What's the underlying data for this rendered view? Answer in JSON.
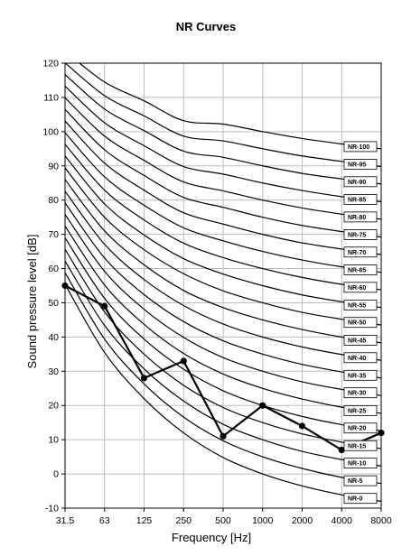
{
  "chart_data": {
    "type": "line",
    "title": "NR Curves",
    "xlabel": "Frequency [Hz]",
    "ylabel": "Sound pressure level [dB]",
    "x_scale": "log",
    "categories": [
      "31.5",
      "63",
      "125",
      "250",
      "500",
      "1000",
      "2000",
      "4000",
      "8000"
    ],
    "ylim": [
      -10,
      120
    ],
    "yticks": [
      "-10",
      "0",
      "10",
      "20",
      "30",
      "40",
      "50",
      "60",
      "70",
      "80",
      "90",
      "100",
      "110",
      "120"
    ],
    "grid": true,
    "series": [
      {
        "name": "NR-0",
        "values": [
          55.4,
          35.5,
          22.0,
          12.0,
          4.8,
          0.0,
          -3.5,
          -6.1,
          -8.0
        ]
      },
      {
        "name": "NR-5",
        "values": [
          58.8,
          39.4,
          26.3,
          16.6,
          9.7,
          5.0,
          1.6,
          -1.0,
          -2.8
        ]
      },
      {
        "name": "NR-10",
        "values": [
          62.2,
          43.4,
          30.7,
          21.3,
          14.5,
          10.0,
          6.6,
          4.2,
          2.3
        ]
      },
      {
        "name": "NR-15",
        "values": [
          65.6,
          47.3,
          35.0,
          25.9,
          19.4,
          15.0,
          11.7,
          9.3,
          7.4
        ]
      },
      {
        "name": "NR-20",
        "values": [
          69.0,
          51.3,
          39.4,
          30.6,
          24.3,
          20.0,
          16.8,
          14.4,
          12.6
        ]
      },
      {
        "name": "NR-25",
        "values": [
          72.4,
          55.2,
          43.7,
          35.2,
          29.2,
          25.0,
          21.9,
          19.5,
          17.7
        ]
      },
      {
        "name": "NR-30",
        "values": [
          75.8,
          59.2,
          48.1,
          39.9,
          34.0,
          30.0,
          26.9,
          24.7,
          22.9
        ]
      },
      {
        "name": "NR-35",
        "values": [
          79.2,
          63.1,
          52.4,
          44.5,
          38.9,
          35.0,
          32.0,
          29.8,
          28.0
        ]
      },
      {
        "name": "NR-40",
        "values": [
          82.6,
          67.1,
          56.8,
          49.2,
          43.8,
          40.0,
          37.1,
          34.9,
          33.2
        ]
      },
      {
        "name": "NR-45",
        "values": [
          86.0,
          71.0,
          61.1,
          53.6,
          48.6,
          45.0,
          42.2,
          40.0,
          38.3
        ]
      },
      {
        "name": "NR-50",
        "values": [
          89.4,
          75.0,
          65.5,
          58.5,
          53.5,
          50.0,
          47.2,
          45.2,
          43.5
        ]
      },
      {
        "name": "NR-55",
        "values": [
          92.9,
          78.9,
          69.8,
          62.9,
          58.4,
          55.0,
          52.3,
          50.3,
          48.6
        ]
      },
      {
        "name": "NR-60",
        "values": [
          96.3,
          82.9,
          74.2,
          67.4,
          63.2,
          60.0,
          57.4,
          55.4,
          53.8
        ]
      },
      {
        "name": "NR-65",
        "values": [
          99.7,
          86.8,
          78.5,
          71.9,
          68.1,
          65.0,
          62.5,
          60.5,
          58.9
        ]
      },
      {
        "name": "NR-70",
        "values": [
          103.1,
          90.8,
          82.9,
          76.3,
          73.0,
          70.0,
          67.5,
          65.7,
          64.1
        ]
      },
      {
        "name": "NR-75",
        "values": [
          106.5,
          94.7,
          87.2,
          80.8,
          77.9,
          75.0,
          72.6,
          70.8,
          69.2
        ]
      },
      {
        "name": "NR-80",
        "values": [
          109.9,
          98.7,
          91.6,
          85.3,
          82.7,
          80.0,
          77.7,
          75.9,
          74.4
        ]
      },
      {
        "name": "NR-85",
        "values": [
          113.3,
          102.6,
          95.9,
          89.8,
          87.6,
          85.0,
          82.8,
          81.0,
          79.5
        ]
      },
      {
        "name": "NR-90",
        "values": [
          116.7,
          106.6,
          100.3,
          94.3,
          92.5,
          90.0,
          87.8,
          86.2,
          84.7
        ]
      },
      {
        "name": "NR-95",
        "values": [
          120.1,
          110.5,
          104.6,
          98.7,
          97.3,
          95.0,
          92.9,
          91.3,
          89.8
        ]
      },
      {
        "name": "NR-100",
        "values": [
          123.5,
          114.5,
          109.0,
          103.2,
          102.2,
          100.0,
          98.0,
          96.4,
          95.0
        ]
      }
    ],
    "measured": {
      "values": [
        55,
        49,
        28,
        33,
        11,
        20,
        14,
        7,
        12
      ],
      "color": "#000000"
    }
  }
}
